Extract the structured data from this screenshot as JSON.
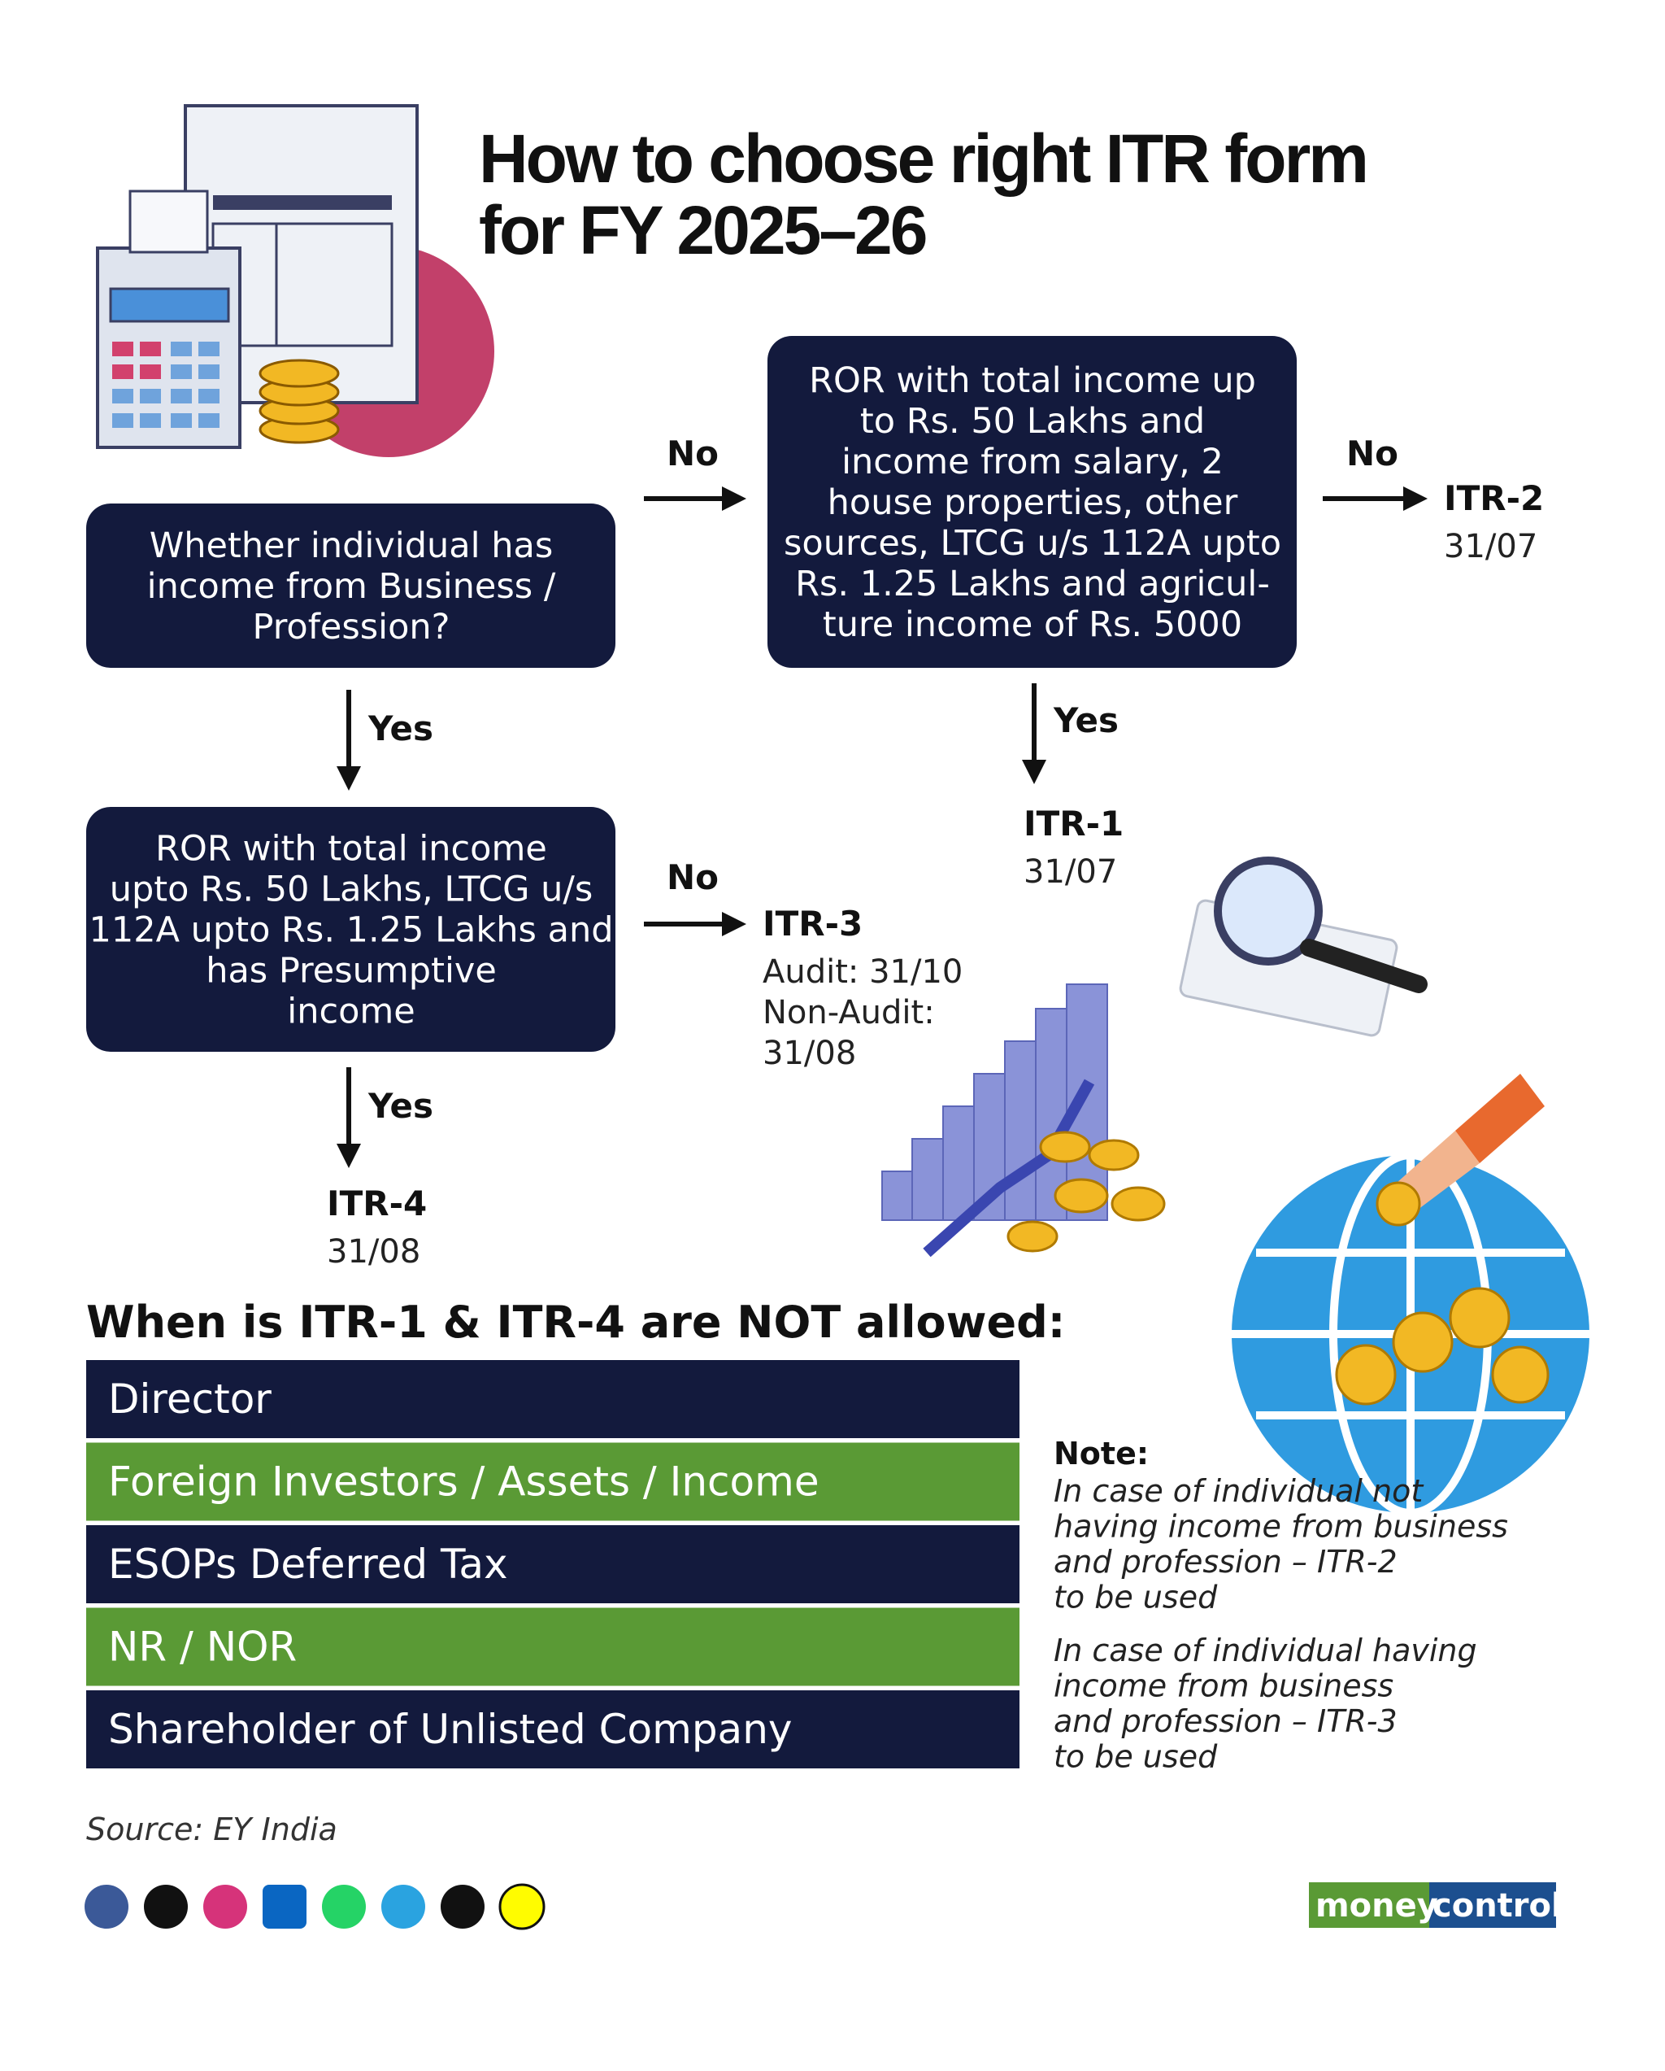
{
  "title": [
    "How to choose right ITR form",
    "for FY 2025–26"
  ],
  "flowchart": {
    "nodes": [
      {
        "lines": [
          "Whether individual has",
          "income from Business /",
          "Profession?"
        ]
      },
      {
        "lines": [
          "ROR with total income up",
          "to Rs. 50 Lakhs and",
          "income from salary, 2",
          "house properties, other",
          "sources, LTCG u/s 112A upto",
          "Rs. 1.25 Lakhs and agricul-",
          "ture income of Rs. 5000"
        ]
      },
      {
        "lines": [
          "ROR with total income",
          "upto Rs. 50 Lakhs, LTCG u/s",
          "112A upto Rs. 1.25 Lakhs and",
          "has Presumptive",
          "income"
        ]
      }
    ],
    "edges": [
      "No",
      "No",
      "Yes",
      "Yes",
      "No",
      "Yes"
    ],
    "outcomes": [
      {
        "form": "ITR-2",
        "due": [
          "31/07"
        ]
      },
      {
        "form": "ITR-1",
        "due": [
          "31/07"
        ]
      },
      {
        "form": "ITR-3",
        "due": [
          "Audit: 31/10",
          "Non-Audit:",
          "31/08"
        ]
      },
      {
        "form": "ITR-4",
        "due": [
          "31/08"
        ]
      }
    ]
  },
  "not_allowed": {
    "heading": "When is ITR-1 & ITR-4 are NOT allowed:",
    "items": [
      "Director",
      "Foreign Investors / Assets / Income",
      "ESOPs Deferred Tax",
      "NR / NOR",
      "Shareholder of Unlisted Company"
    ]
  },
  "note": {
    "label": "Note:",
    "paragraphs": [
      [
        "In case of individual not",
        "having income from business",
        "and profession – ITR-2",
        "to be used"
      ],
      [
        "In case of individual having",
        "income from business",
        "and profession – ITR-3",
        "to be used"
      ]
    ]
  },
  "source": "Source: EY India",
  "brand": [
    "money",
    "control"
  ]
}
